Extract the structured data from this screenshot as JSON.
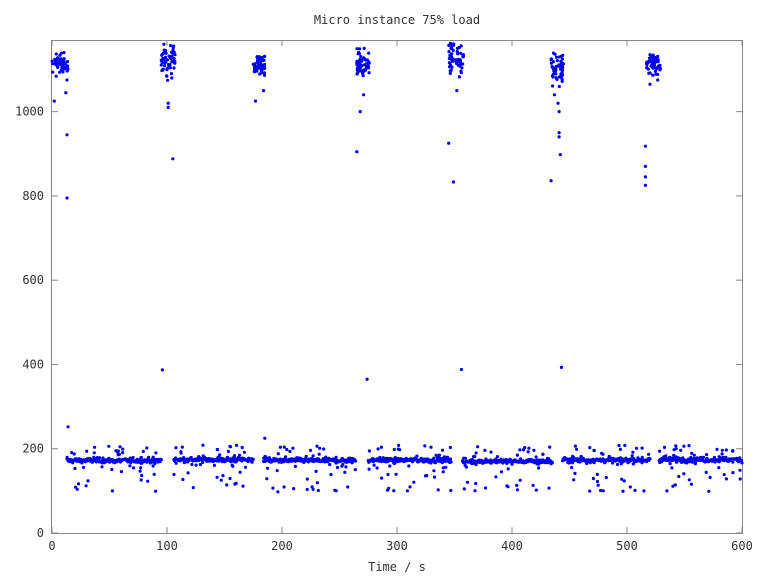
{
  "chart_data": {
    "type": "scatter",
    "title": "Micro instance 75% load",
    "xlabel": "Time / s",
    "ylabel": "",
    "xlim": [
      0,
      600
    ],
    "ylim": [
      0,
      1170
    ],
    "xticks": [
      0,
      100,
      200,
      300,
      400,
      500,
      600
    ],
    "yticks": [
      0,
      200,
      400,
      600,
      800,
      1000
    ],
    "grid": false,
    "legend": "none",
    "marker_color": "#0000ee",
    "series": [
      {
        "name": "",
        "segments": [
          {
            "x_range": [
              13,
              95
            ],
            "base": 172
          },
          {
            "x_range": [
              106,
              175
            ],
            "base": 174
          },
          {
            "x_range": [
              184,
              264
            ],
            "base": 172
          },
          {
            "x_range": [
              275,
              347
            ],
            "base": 173
          },
          {
            "x_range": [
              357,
              435
            ],
            "base": 170
          },
          {
            "x_range": [
              444,
              520
            ],
            "base": 173
          },
          {
            "x_range": [
              528,
              600
            ],
            "base": 174
          }
        ],
        "clusters": [
          {
            "x_range": [
              0,
              14
            ],
            "y_range": [
              1080,
              1140
            ]
          },
          {
            "x_range": [
              95,
              107
            ],
            "y_range": [
              1080,
              1160
            ]
          },
          {
            "x_range": [
              175,
              185
            ],
            "y_range": [
              1080,
              1145
            ]
          },
          {
            "x_range": [
              265,
              276
            ],
            "y_range": [
              1080,
              1150
            ]
          },
          {
            "x_range": [
              345,
              358
            ],
            "y_range": [
              1080,
              1170
            ]
          },
          {
            "x_range": [
              434,
              445
            ],
            "y_range": [
              1060,
              1145
            ]
          },
          {
            "x_range": [
              517,
              529
            ],
            "y_range": [
              1080,
              1145
            ]
          }
        ],
        "outliers": [
          {
            "x": 2,
            "y": 1025
          },
          {
            "x": 12,
            "y": 1045
          },
          {
            "x": 13,
            "y": 1075
          },
          {
            "x": 13,
            "y": 945
          },
          {
            "x": 13,
            "y": 795
          },
          {
            "x": 14,
            "y": 252
          },
          {
            "x": 101,
            "y": 1020
          },
          {
            "x": 101,
            "y": 1010
          },
          {
            "x": 105,
            "y": 888
          },
          {
            "x": 96,
            "y": 387
          },
          {
            "x": 177,
            "y": 1025
          },
          {
            "x": 184,
            "y": 1050
          },
          {
            "x": 185,
            "y": 225
          },
          {
            "x": 265,
            "y": 905
          },
          {
            "x": 268,
            "y": 1000
          },
          {
            "x": 271,
            "y": 1040
          },
          {
            "x": 274,
            "y": 365
          },
          {
            "x": 345,
            "y": 925
          },
          {
            "x": 349,
            "y": 833
          },
          {
            "x": 352,
            "y": 1050
          },
          {
            "x": 356,
            "y": 388
          },
          {
            "x": 434,
            "y": 836
          },
          {
            "x": 437,
            "y": 1040
          },
          {
            "x": 440,
            "y": 1020
          },
          {
            "x": 441,
            "y": 1000
          },
          {
            "x": 441,
            "y": 950
          },
          {
            "x": 441,
            "y": 940
          },
          {
            "x": 442,
            "y": 898
          },
          {
            "x": 443,
            "y": 393
          },
          {
            "x": 516,
            "y": 918
          },
          {
            "x": 516,
            "y": 870
          },
          {
            "x": 516,
            "y": 845
          },
          {
            "x": 516,
            "y": 825
          },
          {
            "x": 520,
            "y": 1065
          }
        ]
      }
    ]
  }
}
